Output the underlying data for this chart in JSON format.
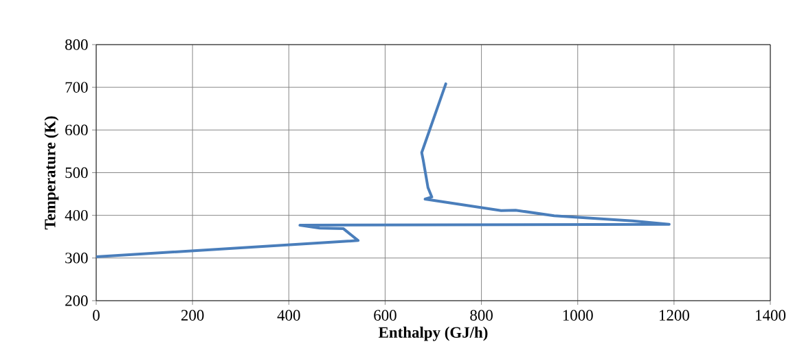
{
  "chart_data": {
    "type": "line",
    "xlabel": "Enthalpy (GJ/h)",
    "ylabel": "Temperature (K)",
    "series": [
      {
        "color": "#4a7ebb",
        "x": [
          0,
          544,
          513,
          464,
          423,
          1190,
          1114,
          951,
          871,
          841,
          683,
          697,
          689,
          679,
          676,
          726
        ],
        "values": [
          303,
          341,
          369,
          370,
          377,
          379,
          387,
          399,
          412,
          411,
          438,
          443,
          465,
          530,
          547,
          708
        ]
      }
    ],
    "xlim": [
      0,
      1400
    ],
    "ylim": [
      200,
      800
    ],
    "xticks": [
      0,
      200,
      400,
      600,
      800,
      1000,
      1200,
      1400
    ],
    "yticks": [
      200,
      300,
      400,
      500,
      600,
      700,
      800
    ],
    "grid": true,
    "marker": "none",
    "line_style": "solid"
  }
}
